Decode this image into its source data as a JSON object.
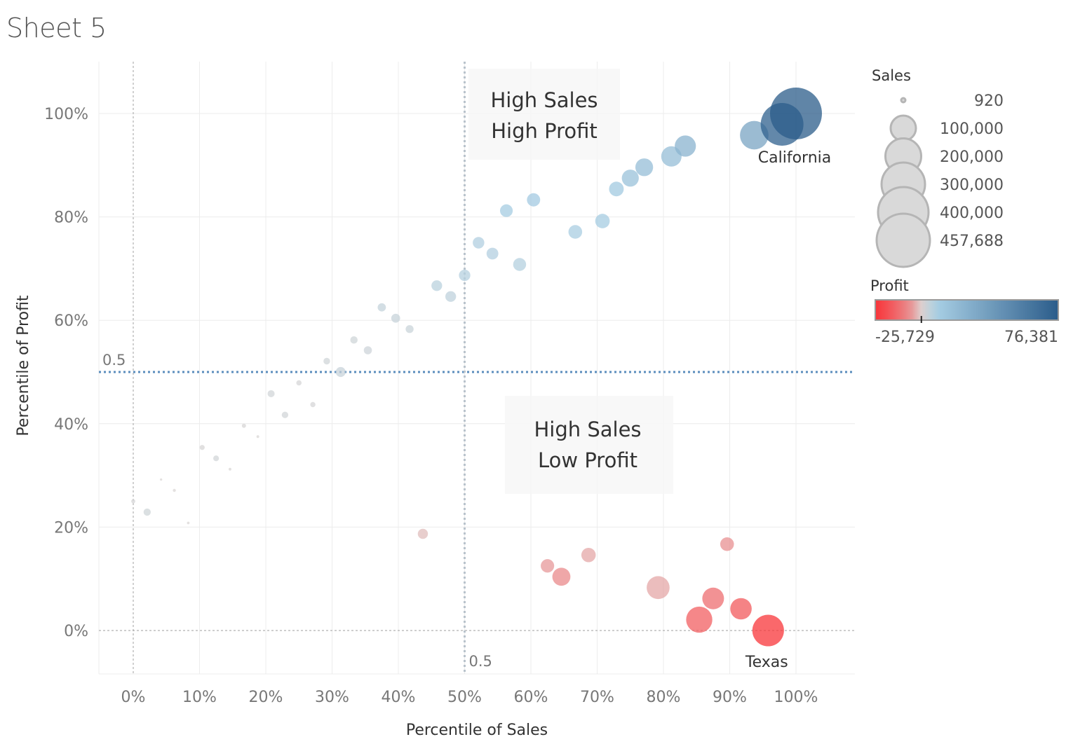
{
  "title": "Sheet 5",
  "chart_data": {
    "type": "scatter",
    "xlabel": "Percentile of Sales",
    "ylabel": "Percentile of Profit",
    "x_ticks": [
      "0%",
      "10%",
      "20%",
      "30%",
      "40%",
      "50%",
      "60%",
      "70%",
      "80%",
      "90%",
      "100%"
    ],
    "y_ticks": [
      "0%",
      "20%",
      "40%",
      "60%",
      "80%",
      "100%"
    ],
    "xlim": [
      -0.05,
      1.09
    ],
    "ylim": [
      -0.085,
      1.1
    ],
    "reference_lines": {
      "sales": {
        "value": 0.5,
        "label": "0.5"
      },
      "profit": {
        "value": 0.5,
        "label": "0.5"
      }
    },
    "annotations": [
      {
        "lines": [
          "High Sales",
          "High Profit"
        ]
      },
      {
        "lines": [
          "High Sales",
          "Low Profit"
        ]
      }
    ],
    "point_labels": [
      {
        "label": "California",
        "point": "CA"
      },
      {
        "label": "Texas",
        "point": "TX"
      }
    ],
    "points": [
      {
        "id": "CA",
        "x": 1.0,
        "y": 1.0,
        "sales": 457688,
        "profit": 76381
      },
      {
        "id": "NY",
        "x": 0.979,
        "y": 0.979,
        "sales": 310876,
        "profit": 74039
      },
      {
        "id": "WA",
        "x": 0.937,
        "y": 0.958,
        "sales": 138641,
        "profit": 33403
      },
      {
        "id": "MI",
        "x": 0.833,
        "y": 0.937,
        "sales": 76270,
        "profit": 24463
      },
      {
        "id": "VA",
        "x": 0.812,
        "y": 0.917,
        "sales": 70637,
        "profit": 18598
      },
      {
        "id": "IN",
        "x": 0.771,
        "y": 0.896,
        "sales": 53555,
        "profit": 18383
      },
      {
        "id": "GA",
        "x": 0.75,
        "y": 0.875,
        "sales": 49096,
        "profit": 16250
      },
      {
        "id": "KY",
        "x": 0.729,
        "y": 0.854,
        "sales": 36592,
        "profit": 11200
      },
      {
        "id": "MN",
        "x": 0.604,
        "y": 0.833,
        "sales": 29863,
        "profit": 10823
      },
      {
        "id": "DE",
        "x": 0.563,
        "y": 0.812,
        "sales": 27451,
        "profit": 9977
      },
      {
        "id": "NJ",
        "x": 0.708,
        "y": 0.792,
        "sales": 35764,
        "profit": 9773
      },
      {
        "id": "WI",
        "x": 0.667,
        "y": 0.771,
        "sales": 32115,
        "profit": 8402
      },
      {
        "id": "RI",
        "x": 0.521,
        "y": 0.75,
        "sales": 22628,
        "profit": 7286
      },
      {
        "id": "MD",
        "x": 0.542,
        "y": 0.729,
        "sales": 23706,
        "profit": 7031
      },
      {
        "id": "MA",
        "x": 0.583,
        "y": 0.708,
        "sales": 28634,
        "profit": 6786
      },
      {
        "id": "MO",
        "x": 0.5,
        "y": 0.687,
        "sales": 22205,
        "profit": 6436
      },
      {
        "id": "AL",
        "x": 0.458,
        "y": 0.667,
        "sales": 19511,
        "profit": 5787
      },
      {
        "id": "OK",
        "x": 0.479,
        "y": 0.646,
        "sales": 19683,
        "profit": 4854
      },
      {
        "id": "AR",
        "x": 0.375,
        "y": 0.625,
        "sales": 11678,
        "profit": 4009
      },
      {
        "id": "CT",
        "x": 0.396,
        "y": 0.604,
        "sales": 13384,
        "profit": 3511
      },
      {
        "id": "MS",
        "x": 0.417,
        "y": 0.583,
        "sales": 10771,
        "profit": 3173
      },
      {
        "id": "LA",
        "x": 0.333,
        "y": 0.562,
        "sales": 9217,
        "profit": 2196
      },
      {
        "id": "UT",
        "x": 0.354,
        "y": 0.542,
        "sales": 11220,
        "profit": 2547
      },
      {
        "id": "NE",
        "x": 0.292,
        "y": 0.521,
        "sales": 7465,
        "profit": 2037
      },
      {
        "id": "NV",
        "x": 0.313,
        "y": 0.5,
        "sales": 16729,
        "profit": 3317
      },
      {
        "id": "SC",
        "x": 0.208,
        "y": 0.458,
        "sales": 8482,
        "profit": 1769
      },
      {
        "id": "NM",
        "x": 0.25,
        "y": 0.479,
        "sales": 4784,
        "profit": 1157
      },
      {
        "id": "IA",
        "x": 0.271,
        "y": 0.437,
        "sales": 4580,
        "profit": 1184
      },
      {
        "id": "NH",
        "x": 0.229,
        "y": 0.417,
        "sales": 7293,
        "profit": 1707
      },
      {
        "id": "KS",
        "x": 0.167,
        "y": 0.396,
        "sales": 2914,
        "profit": 836
      },
      {
        "id": "ME",
        "x": 0.188,
        "y": 0.375,
        "sales": 1271,
        "profit": 454
      },
      {
        "id": "ID",
        "x": 0.104,
        "y": 0.354,
        "sales": 4382,
        "profit": 827
      },
      {
        "id": "MT",
        "x": 0.125,
        "y": 0.333,
        "sales": 5589,
        "profit": 1833
      },
      {
        "id": "SD",
        "x": 0.146,
        "y": 0.312,
        "sales": 1316,
        "profit": 394
      },
      {
        "id": "ND",
        "x": 0.042,
        "y": 0.292,
        "sales": 920,
        "profit": 230
      },
      {
        "id": "WY",
        "x": 0.062,
        "y": 0.271,
        "sales": 1603,
        "profit": 100
      },
      {
        "id": "DC",
        "x": 0.0,
        "y": 0.25,
        "sales": 2865,
        "profit": 1060
      },
      {
        "id": "VT",
        "x": 0.021,
        "y": 0.229,
        "sales": 8929,
        "profit": 2245
      },
      {
        "id": "WV",
        "x": 0.083,
        "y": 0.208,
        "sales": 1210,
        "profit": 186
      },
      {
        "id": "OR",
        "x": 0.437,
        "y": 0.187,
        "sales": 17431,
        "profit": -1194
      },
      {
        "id": "CO",
        "x": 0.896,
        "y": 0.167,
        "sales": 32108,
        "profit": -6528
      },
      {
        "id": "AZ",
        "x": 0.687,
        "y": 0.146,
        "sales": 35282,
        "profit": -3428
      },
      {
        "id": "TN",
        "x": 0.625,
        "y": 0.125,
        "sales": 30662,
        "profit": -5342
      },
      {
        "id": "NC",
        "x": 0.646,
        "y": 0.104,
        "sales": 55603,
        "profit": -7491
      },
      {
        "id": "FL",
        "x": 0.792,
        "y": 0.083,
        "sales": 89474,
        "profit": -3399
      },
      {
        "id": "IL",
        "x": 0.875,
        "y": 0.062,
        "sales": 80166,
        "profit": -12608
      },
      {
        "id": "OH",
        "x": 0.917,
        "y": 0.042,
        "sales": 78258,
        "profit": -16971
      },
      {
        "id": "PA",
        "x": 0.854,
        "y": 0.021,
        "sales": 116512,
        "profit": -15560
      },
      {
        "id": "TX",
        "x": 0.958,
        "y": 0.0,
        "sales": 170188,
        "profit": -25729
      }
    ],
    "size_legend": {
      "title": "Sales",
      "entries": [
        {
          "value": 920,
          "label": "920"
        },
        {
          "value": 100000,
          "label": "100,000"
        },
        {
          "value": 200000,
          "label": "200,000"
        },
        {
          "value": 300000,
          "label": "300,000"
        },
        {
          "value": 400000,
          "label": "400,000"
        },
        {
          "value": 457688,
          "label": "457,688"
        }
      ]
    },
    "color_legend": {
      "title": "Profit",
      "min": -25729,
      "max": 76381,
      "min_label": "-25,729",
      "max_label": "76,381",
      "colors": {
        "neg": "#f8353a",
        "mid": "#dcd7d5",
        "light_pos": "#a6cde3",
        "pos": "#2b5c8a"
      }
    },
    "grid": true
  }
}
